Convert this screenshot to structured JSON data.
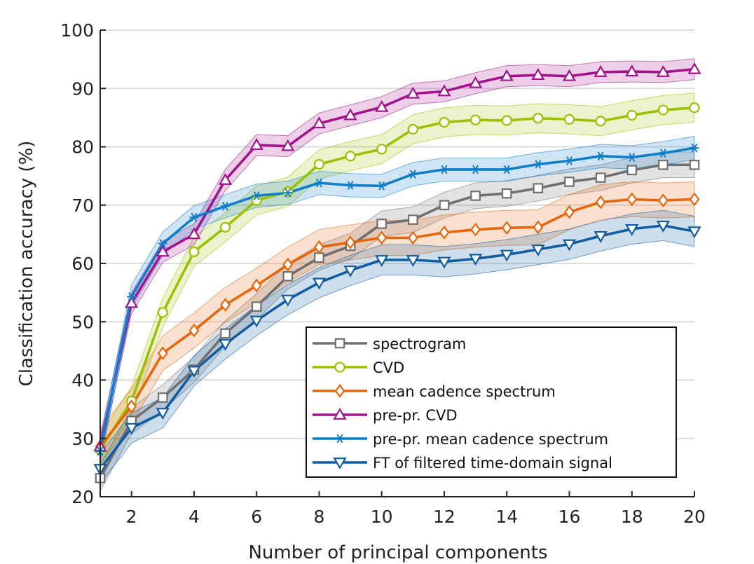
{
  "chart_data": {
    "type": "line",
    "title": "",
    "xlabel": "Number of principal components",
    "ylabel": "Classification accuracy (%)",
    "xlim": [
      1,
      20
    ],
    "ylim": [
      20,
      100
    ],
    "xticks": [
      2,
      4,
      6,
      8,
      10,
      12,
      14,
      16,
      18,
      20
    ],
    "xtick_labels": [
      "2",
      "4",
      "6",
      "8",
      "10",
      "12",
      "14",
      "16",
      "18",
      "20"
    ],
    "yticks": [
      20,
      30,
      40,
      50,
      60,
      70,
      80,
      90,
      100
    ],
    "ytick_labels": [
      "20",
      "30",
      "40",
      "50",
      "60",
      "70",
      "80",
      "90",
      "100"
    ],
    "grid": "horizontal",
    "legend_position": "bottom-right",
    "x": [
      1,
      2,
      3,
      4,
      5,
      6,
      7,
      8,
      9,
      10,
      11,
      12,
      13,
      14,
      15,
      16,
      17,
      18,
      19,
      20
    ],
    "series": [
      {
        "name": "spectrogram",
        "color": "#707070",
        "marker": "square",
        "values": [
          23.2,
          33.0,
          37.0,
          41.8,
          48.0,
          52.6,
          57.8,
          61.0,
          63.0,
          66.8,
          67.5,
          70.0,
          71.6,
          72.0,
          72.9,
          74.0,
          74.7,
          76.0,
          76.9,
          76.9
        ],
        "band": 2.2
      },
      {
        "name": "CVD",
        "color": "#99C100",
        "marker": "circle",
        "values": [
          28.0,
          36.4,
          51.6,
          62.0,
          66.2,
          70.8,
          72.3,
          77.0,
          78.4,
          79.6,
          83.0,
          84.2,
          84.6,
          84.5,
          84.9,
          84.7,
          84.4,
          85.4,
          86.3,
          86.7
        ],
        "band": 2.5
      },
      {
        "name": "mean cadence spectrum",
        "color": "#E8650A",
        "marker": "diamond",
        "values": [
          28.6,
          35.5,
          44.6,
          48.5,
          52.9,
          56.2,
          59.8,
          62.8,
          63.6,
          64.4,
          64.4,
          65.3,
          65.8,
          66.1,
          66.2,
          68.8,
          70.5,
          71.0,
          70.8,
          71.0
        ],
        "band": 3.0
      },
      {
        "name": "pre-pr. CVD",
        "color": "#A3128C",
        "marker": "triangle-up",
        "values": [
          28.6,
          53.2,
          62.0,
          65.0,
          74.3,
          80.3,
          80.1,
          84.0,
          85.4,
          86.8,
          89.1,
          89.5,
          90.9,
          92.1,
          92.3,
          92.1,
          92.8,
          92.9,
          92.8,
          93.3
        ],
        "band": 1.8
      },
      {
        "name": "pre-pr. mean cadence spectrum",
        "color": "#0E7ECB",
        "marker": "asterisk",
        "values": [
          27.8,
          54.3,
          63.4,
          67.9,
          69.8,
          71.6,
          72.1,
          73.8,
          73.4,
          73.3,
          75.3,
          76.1,
          76.1,
          76.1,
          77.0,
          77.6,
          78.4,
          78.2,
          78.9,
          79.8
        ],
        "band": 2.0
      },
      {
        "name": "FT of filtered time-domain signal",
        "color": "#0F5CA0",
        "marker": "triangle-down",
        "values": [
          24.8,
          31.8,
          34.4,
          41.6,
          46.2,
          50.2,
          53.8,
          56.7,
          58.8,
          60.6,
          60.6,
          60.3,
          60.8,
          61.5,
          62.4,
          63.3,
          64.7,
          65.9,
          66.5,
          65.5
        ],
        "band": 2.6
      }
    ]
  }
}
